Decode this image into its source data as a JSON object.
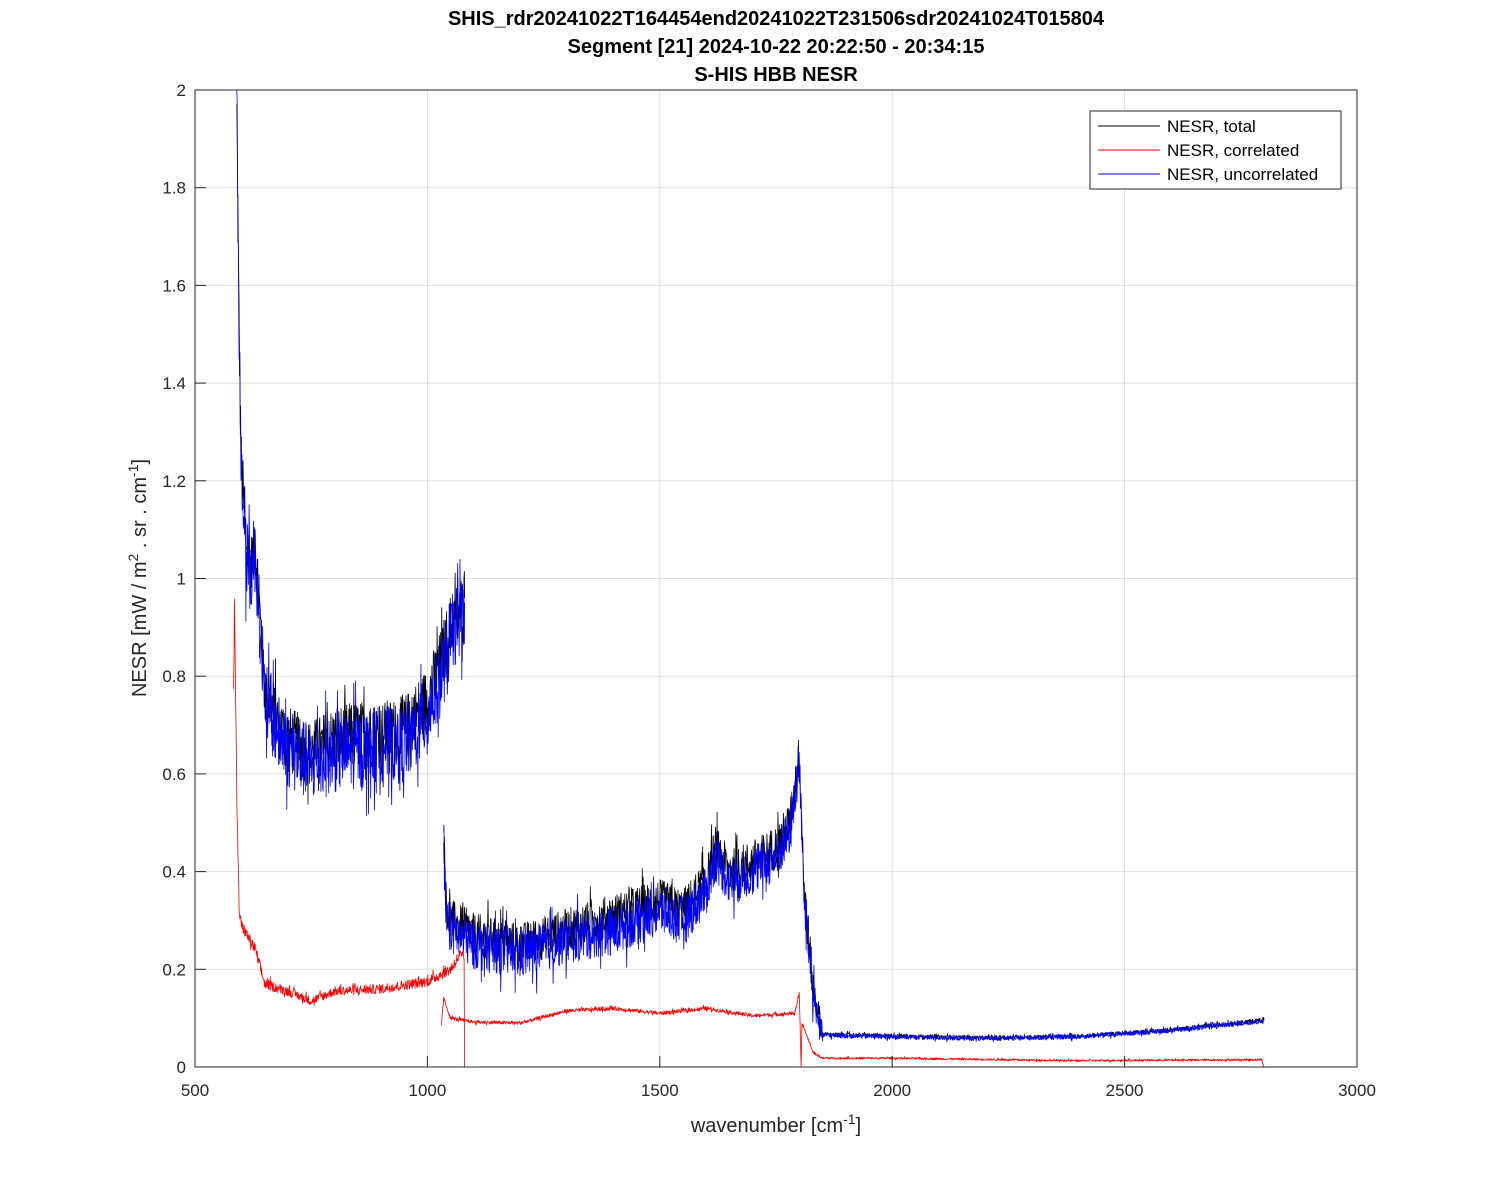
{
  "chart_data": {
    "type": "line",
    "title": [
      "SHIS_rdr20241022T164454end20241022T231506sdr20241024T015804",
      "Segment [21] 2024-10-22 20:22:50 - 20:34:15",
      "S-HIS HBB NESR"
    ],
    "xlabel": {
      "text": "wavenumber [cm",
      "sup": "-1",
      "close": "]"
    },
    "ylabel": {
      "p1": "NESR [mW / m",
      "sup1": "2",
      "p2": " . sr . cm",
      "sup2": "-1",
      "p3": "]"
    },
    "xlim": [
      500,
      3000
    ],
    "ylim": [
      0,
      2
    ],
    "xticks": [
      500,
      1000,
      1500,
      2000,
      2500,
      3000
    ],
    "yticks": [
      0,
      0.2,
      0.4,
      0.6,
      0.8,
      1,
      1.2,
      1.4,
      1.6,
      1.8,
      2
    ],
    "ytick_labels": [
      "0",
      "0.2",
      "0.4",
      "0.6",
      "0.8",
      "1",
      "1.2",
      "1.4",
      "1.6",
      "1.8",
      "2"
    ],
    "grid": true,
    "legend_placement": "top-right",
    "series": [
      {
        "name": "NESR, total",
        "color": "#000000",
        "segments": [
          {
            "points": [
              [
                590,
                1.95
              ],
              [
                595,
                1.5
              ],
              [
                600,
                1.22
              ],
              [
                610,
                1.08
              ],
              [
                620,
                1.02
              ],
              [
                630,
                1.07
              ],
              [
                640,
                0.92
              ],
              [
                650,
                0.77
              ],
              [
                680,
                0.7
              ],
              [
                700,
                0.67
              ],
              [
                750,
                0.64
              ],
              [
                800,
                0.67
              ],
              [
                850,
                0.68
              ],
              [
                900,
                0.68
              ],
              [
                950,
                0.69
              ],
              [
                1000,
                0.75
              ],
              [
                1030,
                0.83
              ],
              [
                1050,
                0.9
              ],
              [
                1070,
                0.93
              ],
              [
                1080,
                0.96
              ]
            ],
            "noise": 0.07
          },
          {
            "points": [
              [
                1035,
                0.5
              ],
              [
                1040,
                0.34
              ],
              [
                1050,
                0.3
              ],
              [
                1100,
                0.27
              ],
              [
                1200,
                0.25
              ],
              [
                1300,
                0.28
              ],
              [
                1400,
                0.31
              ],
              [
                1500,
                0.34
              ],
              [
                1550,
                0.32
              ],
              [
                1600,
                0.38
              ],
              [
                1620,
                0.45
              ],
              [
                1650,
                0.4
              ],
              [
                1700,
                0.42
              ],
              [
                1750,
                0.45
              ],
              [
                1780,
                0.5
              ],
              [
                1800,
                0.64
              ],
              [
                1805,
                0.52
              ],
              [
                1810,
                0.37
              ],
              [
                1830,
                0.16
              ],
              [
                1850,
                0.07
              ]
            ],
            "noise": 0.045
          },
          {
            "points": [
              [
                1850,
                0.067
              ],
              [
                2000,
                0.064
              ],
              [
                2200,
                0.06
              ],
              [
                2400,
                0.063
              ],
              [
                2600,
                0.076
              ],
              [
                2800,
                0.096
              ]
            ],
            "noise": 0.008
          }
        ]
      },
      {
        "name": "NESR, correlated",
        "color": "#ff0000",
        "segments": [
          {
            "points": [
              [
                583,
                0.78
              ],
              [
                585,
                0.95
              ],
              [
                590,
                0.55
              ],
              [
                595,
                0.32
              ],
              [
                600,
                0.29
              ],
              [
                630,
                0.24
              ],
              [
                650,
                0.17
              ],
              [
                700,
                0.155
              ],
              [
                750,
                0.135
              ],
              [
                800,
                0.155
              ],
              [
                900,
                0.16
              ],
              [
                1000,
                0.175
              ],
              [
                1050,
                0.2
              ],
              [
                1070,
                0.23
              ],
              [
                1079,
                0.22
              ],
              [
                1080,
                0.0
              ]
            ],
            "noise": 0.012
          },
          {
            "points": [
              [
                1030,
                0.085
              ],
              [
                1035,
                0.14
              ],
              [
                1050,
                0.1
              ],
              [
                1100,
                0.092
              ],
              [
                1200,
                0.09
              ],
              [
                1300,
                0.115
              ],
              [
                1400,
                0.12
              ],
              [
                1500,
                0.11
              ],
              [
                1600,
                0.12
              ],
              [
                1700,
                0.105
              ],
              [
                1790,
                0.11
              ],
              [
                1800,
                0.15
              ],
              [
                1804,
                0.0
              ],
              [
                1806,
                0.09
              ],
              [
                1830,
                0.03
              ],
              [
                1850,
                0.018
              ],
              [
                2000,
                0.018
              ],
              [
                2400,
                0.013
              ],
              [
                2795,
                0.015
              ],
              [
                2800,
                0.0
              ]
            ],
            "noise": 0.006
          }
        ]
      },
      {
        "name": "NESR, uncorrelated",
        "color": "#0000ff",
        "segments": [
          {
            "points": [
              [
                590,
                2.0
              ],
              [
                595,
                1.48
              ],
              [
                600,
                1.2
              ],
              [
                610,
                1.05
              ],
              [
                620,
                1.0
              ],
              [
                630,
                1.05
              ],
              [
                640,
                0.9
              ],
              [
                650,
                0.75
              ],
              [
                680,
                0.68
              ],
              [
                700,
                0.65
              ],
              [
                750,
                0.62
              ],
              [
                800,
                0.64
              ],
              [
                850,
                0.65
              ],
              [
                900,
                0.66
              ],
              [
                950,
                0.66
              ],
              [
                1000,
                0.72
              ],
              [
                1030,
                0.8
              ],
              [
                1050,
                0.88
              ],
              [
                1070,
                0.92
              ],
              [
                1080,
                0.95
              ]
            ],
            "noise": 0.08
          },
          {
            "points": [
              [
                1035,
                0.45
              ],
              [
                1040,
                0.32
              ],
              [
                1050,
                0.28
              ],
              [
                1100,
                0.25
              ],
              [
                1200,
                0.23
              ],
              [
                1300,
                0.26
              ],
              [
                1400,
                0.28
              ],
              [
                1500,
                0.32
              ],
              [
                1550,
                0.3
              ],
              [
                1600,
                0.36
              ],
              [
                1620,
                0.43
              ],
              [
                1650,
                0.38
              ],
              [
                1700,
                0.4
              ],
              [
                1750,
                0.43
              ],
              [
                1780,
                0.48
              ],
              [
                1800,
                0.62
              ],
              [
                1805,
                0.5
              ],
              [
                1810,
                0.35
              ],
              [
                1830,
                0.15
              ],
              [
                1850,
                0.065
              ]
            ],
            "noise": 0.05
          },
          {
            "points": [
              [
                1850,
                0.065
              ],
              [
                2000,
                0.062
              ],
              [
                2200,
                0.058
              ],
              [
                2400,
                0.062
              ],
              [
                2600,
                0.075
              ],
              [
                2800,
                0.095
              ]
            ],
            "noise": 0.01
          }
        ]
      }
    ]
  }
}
